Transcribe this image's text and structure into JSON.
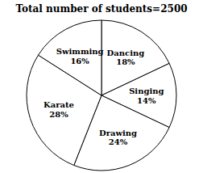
{
  "chart_data": {
    "type": "pie",
    "title": "Total number of students=2500",
    "categories": [
      "Dancing",
      "Singing",
      "Drawing",
      "Karate",
      "Swimming"
    ],
    "values": [
      18,
      14,
      24,
      28,
      16
    ],
    "value_labels": [
      "18%",
      "14%",
      "24%",
      "28%",
      "16%"
    ],
    "colors": [
      "#ffffff",
      "#ffffff",
      "#ffffff",
      "#ffffff",
      "#ffffff"
    ],
    "data_labels": true
  }
}
